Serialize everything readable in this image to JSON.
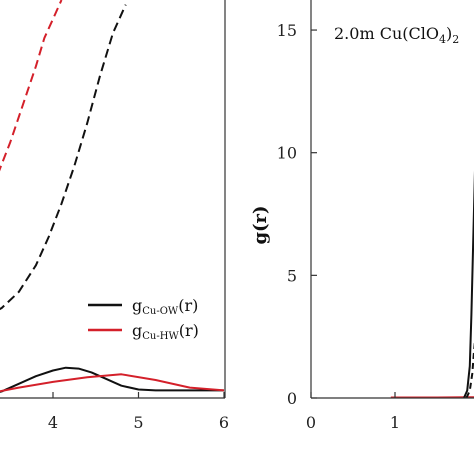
{
  "chart_data": [
    {
      "type": "line",
      "panel": "left (cropped)",
      "xlim": [
        3.2,
        6.0
      ],
      "ylim": [
        0,
        4.2
      ],
      "x_ticks": [
        "4",
        "5",
        "6"
      ],
      "legend": {
        "placement": "right",
        "entries": [
          {
            "prefix": "g",
            "sub": "Cu-OW",
            "suffix": "(r)",
            "color": "#111111"
          },
          {
            "prefix": "g",
            "sub": "Cu-HW",
            "suffix": "(r)",
            "color": "#d4202a"
          }
        ]
      },
      "series": [
        {
          "name": "gCu-OW(r)",
          "color": "#111111",
          "style": "solid",
          "x": [
            3.2,
            3.4,
            3.6,
            3.8,
            4.0,
            4.15,
            4.3,
            4.45,
            4.6,
            4.8,
            5.0,
            5.2,
            5.5,
            6.0
          ],
          "y": [
            0.02,
            0.07,
            0.15,
            0.23,
            0.29,
            0.32,
            0.31,
            0.27,
            0.21,
            0.13,
            0.09,
            0.08,
            0.08,
            0.08
          ]
        },
        {
          "name": "gCu-HW(r)",
          "color": "#d4202a",
          "style": "solid",
          "x": [
            3.2,
            3.6,
            4.0,
            4.4,
            4.8,
            5.2,
            5.6,
            6.0
          ],
          "y": [
            0.04,
            0.11,
            0.17,
            0.22,
            0.25,
            0.19,
            0.11,
            0.08
          ]
        },
        {
          "name": "",
          "color": "#111111",
          "style": "dashed",
          "x": [
            3.2,
            3.4,
            3.6,
            3.8,
            3.95,
            4.1,
            4.25,
            4.4,
            4.55,
            4.7,
            4.85
          ],
          "y": [
            0.85,
            0.95,
            1.12,
            1.4,
            1.7,
            2.05,
            2.45,
            2.9,
            3.4,
            3.85,
            4.15
          ]
        },
        {
          "name": "",
          "color": "#d4202a",
          "style": "dashed",
          "x": [
            3.2,
            3.35,
            3.5,
            3.65,
            3.8,
            3.9,
            4.0,
            4.1
          ],
          "y": [
            2.1,
            2.35,
            2.7,
            3.1,
            3.5,
            3.8,
            4.0,
            4.2
          ]
        }
      ]
    },
    {
      "type": "line",
      "panel": "right (cropped)",
      "annotation": "2.0m Cu(ClO4)2",
      "ylabel": "g(r)",
      "xlim": [
        0,
        2.1
      ],
      "ylim": [
        0,
        16
      ],
      "y_ticks": [
        0,
        5,
        10,
        15
      ],
      "x_ticks": [
        0,
        1
      ],
      "series": [
        {
          "name": "",
          "color": "#d4202a",
          "style": "solid",
          "x": [
            0.95,
            1.2,
            1.5,
            1.85,
            2.1
          ],
          "y": [
            0.02,
            0.02,
            0.02,
            0.03,
            0.04
          ]
        },
        {
          "name": "",
          "color": "#111111",
          "style": "solid",
          "x": [
            1.82,
            1.86,
            1.89,
            1.91,
            1.93,
            1.95,
            1.97,
            1.98,
            1.99
          ],
          "y": [
            0.0,
            0.3,
            1.3,
            3.4,
            6.2,
            9.0,
            11.3,
            12.3,
            12.3
          ]
        },
        {
          "name": "",
          "color": "#111111",
          "style": "dashed",
          "x": [
            1.85,
            1.89,
            1.92,
            1.94,
            1.96,
            1.98,
            1.99
          ],
          "y": [
            0.0,
            0.3,
            1.0,
            1.9,
            2.6,
            3.0,
            3.1
          ]
        }
      ]
    }
  ]
}
